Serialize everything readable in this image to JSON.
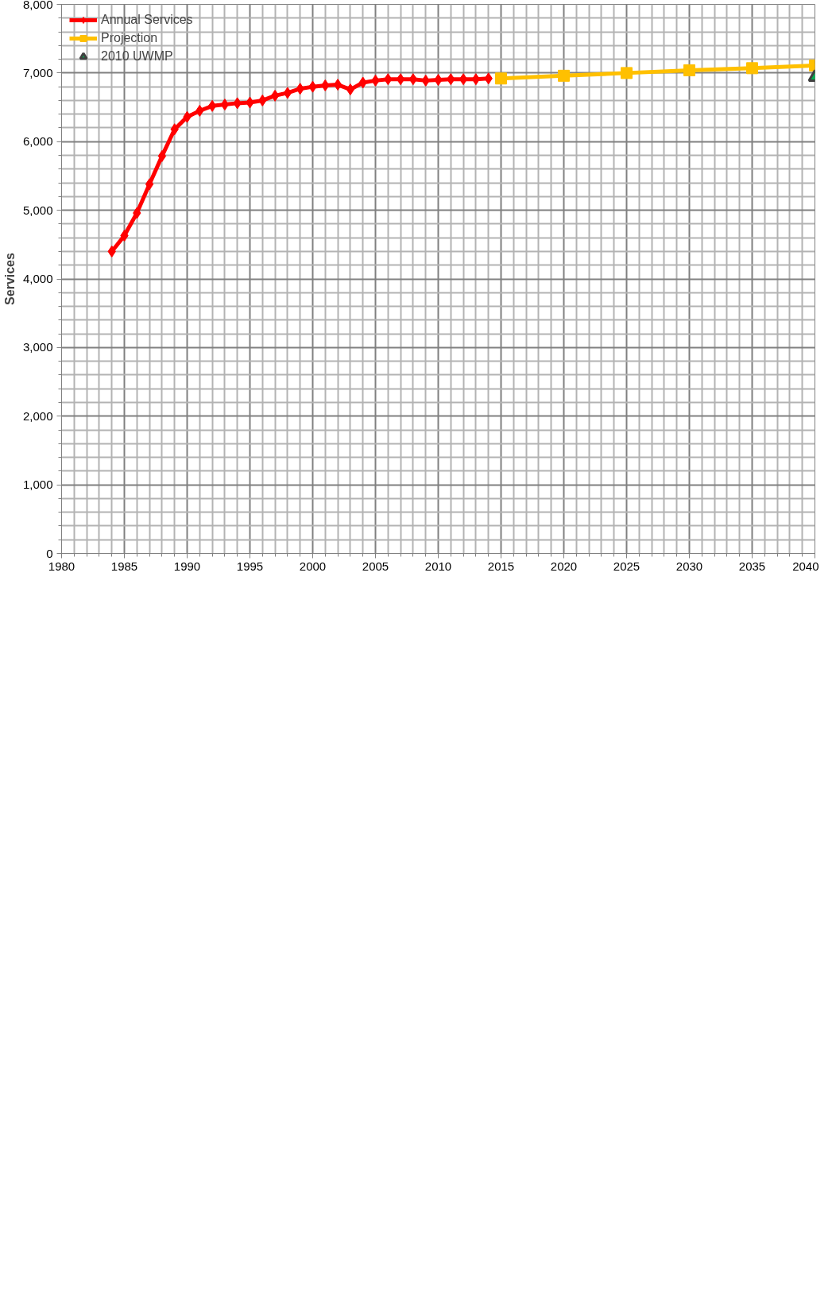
{
  "chart_data": {
    "type": "line",
    "ylabel": "Services",
    "xlim": [
      1980,
      2040
    ],
    "xticks": [
      1980,
      1985,
      1990,
      1995,
      2000,
      2005,
      2010,
      2015,
      2020,
      2025,
      2030,
      2035,
      2040
    ],
    "ylim": [
      0,
      8000
    ],
    "yticks": [
      0,
      {
        "value": 1000,
        "label": "1,000"
      },
      {
        "value": 2000,
        "label": "2,000"
      },
      {
        "value": 3000,
        "label": "3,000"
      },
      {
        "value": 4000,
        "label": "4,000"
      },
      {
        "value": 5000,
        "label": "5,000"
      },
      {
        "value": 6000,
        "label": "6,000"
      },
      {
        "value": 7000,
        "label": "7,000"
      },
      {
        "value": 8000,
        "label": "8,000"
      }
    ],
    "grid": true,
    "legend": "top left",
    "series": [
      {
        "name": "Annual Services",
        "color": "#ff0000",
        "marker": "diamond",
        "x": [
          1984,
          1985,
          1986,
          1987,
          1988,
          1989,
          1990,
          1991,
          1992,
          1993,
          1994,
          1995,
          1996,
          1997,
          1998,
          1999,
          2000,
          2001,
          2002,
          2003,
          2004,
          2005,
          2006,
          2007,
          2008,
          2009,
          2010,
          2011,
          2012,
          2013,
          2014
        ],
        "values": [
          4400,
          4630,
          4960,
          5380,
          5790,
          6180,
          6360,
          6450,
          6520,
          6540,
          6560,
          6570,
          6600,
          6670,
          6710,
          6770,
          6800,
          6820,
          6830,
          6760,
          6860,
          6890,
          6910,
          6910,
          6910,
          6890,
          6900,
          6910,
          6910,
          6910,
          6920
        ]
      },
      {
        "name": "Projection",
        "color": "#ffc000",
        "marker": "square",
        "x": [
          2015,
          2020,
          2025,
          2030,
          2035,
          2040
        ],
        "values": [
          6920,
          6960,
          7000,
          7040,
          7070,
          7110
        ]
      },
      {
        "name": "2010 UWMP",
        "type": "scatter",
        "color": "#00b050",
        "marker": "triangle",
        "x": [
          2040
        ],
        "values": [
          6940
        ]
      }
    ]
  }
}
